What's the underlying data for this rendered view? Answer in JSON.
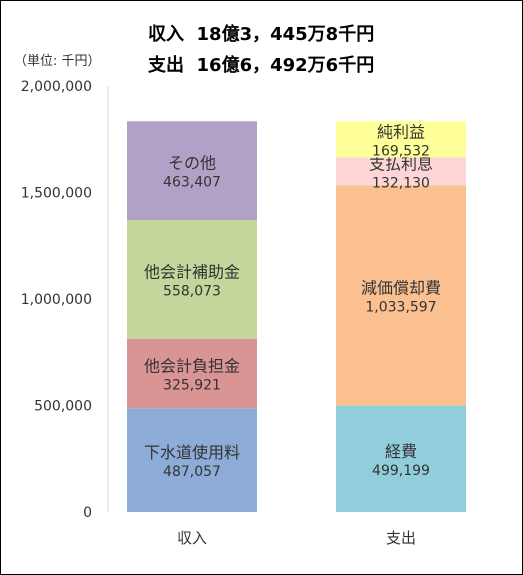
{
  "summary": {
    "income_line": "収入  18億3，445万8千円",
    "expense_line": "支出  16億6，492万6千円"
  },
  "chart_data": {
    "type": "bar",
    "stacked": true,
    "unit_label": "（単位: 千円）",
    "categories": [
      "収入",
      "支出"
    ],
    "ylim": [
      0,
      2000000
    ],
    "yticks": [
      0,
      500000,
      1000000,
      1500000,
      2000000
    ],
    "ytick_labels": [
      "0",
      "500,000",
      "1,000,000",
      "1,500,000",
      "2,000,000"
    ],
    "grid": false,
    "legend": "none",
    "stacks": [
      {
        "category": "収入",
        "segments": [
          {
            "name": "下水道使用料",
            "value": 487057,
            "label": "487,057",
            "color": "#8eacd8"
          },
          {
            "name": "他会計負担金",
            "value": 325921,
            "label": "325,921",
            "color": "#d99594"
          },
          {
            "name": "他会計補助金",
            "value": 558073,
            "label": "558,073",
            "color": "#c3d69b"
          },
          {
            "name": "その他",
            "value": 463407,
            "label": "463,407",
            "color": "#b2a1c7"
          }
        ]
      },
      {
        "category": "支出",
        "segments": [
          {
            "name": "経費",
            "value": 499199,
            "label": "499,199",
            "color": "#92cddc"
          },
          {
            "name": "減価償却費",
            "value": 1033597,
            "label": "1,033,597",
            "color": "#fac090"
          },
          {
            "name": "支払利息",
            "value": 132130,
            "label": "132,130",
            "color": "#fcd5d4"
          },
          {
            "name": "純利益",
            "value": 169532,
            "label": "169,532",
            "color": "#ffff99"
          }
        ]
      }
    ]
  }
}
